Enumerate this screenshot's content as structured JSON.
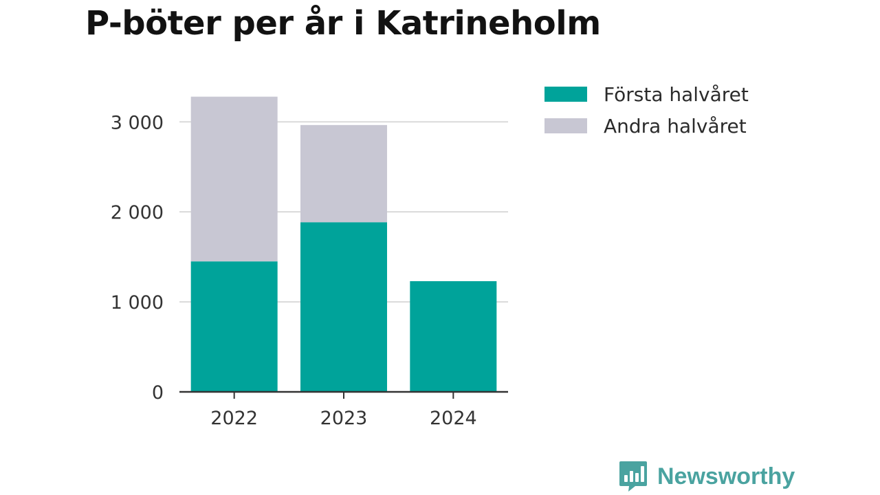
{
  "chart_data": {
    "type": "bar",
    "stacked": true,
    "title": "P-böter per år i Katrineholm",
    "categories": [
      "2022",
      "2023",
      "2024"
    ],
    "series": [
      {
        "name": "Första halvåret",
        "color": "#00a39a",
        "values": [
          1450,
          1885,
          1230
        ]
      },
      {
        "name": "Andra halvåret",
        "color": "#c8c7d3",
        "values": [
          1830,
          1080,
          0
        ]
      }
    ],
    "y_ticks": [
      0,
      1000,
      2000,
      3000
    ],
    "y_tick_labels": [
      "0",
      "1 000",
      "2 000",
      "3 000"
    ],
    "ylim": [
      0,
      3300
    ],
    "grid": true,
    "legend_position": "right"
  },
  "brand": {
    "name": "Newsworthy",
    "logo_icon": "bar-chart-speech-bubble-icon",
    "color": "#4aa3a0"
  }
}
